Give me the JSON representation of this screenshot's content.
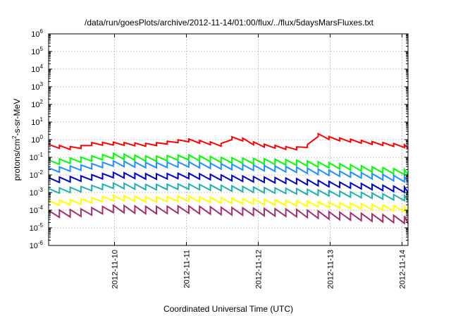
{
  "chart_data": {
    "type": "line",
    "title": "/data/run/goesPlots/archive/2012-11-14/01:00/flux/../flux/5daysMarsFluxes.txt",
    "xlabel": "Coordinated Universal Time (UTC)",
    "ylabel": {
      "base": "protons/cm",
      "sup": "2",
      "rest": "-s-sr-MeV"
    },
    "y_scale": "log",
    "ylim_exponents": [
      -6,
      6
    ],
    "y_ticks": [
      {
        "base": "10",
        "exp": "6"
      },
      {
        "base": "10",
        "exp": "5"
      },
      {
        "base": "10",
        "exp": "4"
      },
      {
        "base": "10",
        "exp": "3"
      },
      {
        "base": "10",
        "exp": "2"
      },
      {
        "base": "10",
        "exp": "1"
      },
      {
        "base": "10",
        "exp": "0"
      },
      {
        "base": "10",
        "exp": "-1"
      },
      {
        "base": "10",
        "exp": "-2"
      },
      {
        "base": "10",
        "exp": "-3"
      },
      {
        "base": "10",
        "exp": "-4"
      },
      {
        "base": "10",
        "exp": "-5"
      },
      {
        "base": "10",
        "exp": "-6"
      }
    ],
    "x_range_days": [
      "2012-11-09 02:00",
      "2012-11-14 02:00"
    ],
    "x_ticks": [
      "2012-11-10",
      "2012-11-11",
      "2012-11-12",
      "2012-11-13",
      "2012-11-14"
    ],
    "grid": true,
    "series": [
      {
        "color": "#ff0000",
        "points": [
          [
            "2012-11-09 02:00",
            0.45
          ],
          [
            "2012-11-09 12:00",
            0.3
          ],
          [
            "2012-11-09 14:00",
            0.55
          ],
          [
            "2012-11-10 00:00",
            0.6
          ],
          [
            "2012-11-10 12:00",
            0.5
          ],
          [
            "2012-11-11 00:00",
            0.95
          ],
          [
            "2012-11-11 12:00",
            0.5
          ],
          [
            "2012-11-11 16:00",
            1.5
          ],
          [
            "2012-11-12 00:00",
            0.5
          ],
          [
            "2012-11-12 12:00",
            0.3
          ],
          [
            "2012-11-12 18:00",
            0.5
          ],
          [
            "2012-11-12 19:00",
            2.0
          ],
          [
            "2012-11-13 00:00",
            1.2
          ],
          [
            "2012-11-13 12:00",
            0.7
          ],
          [
            "2012-11-14 00:00",
            0.45
          ],
          [
            "2012-11-14 02:00",
            0.4
          ]
        ]
      },
      {
        "color": "#00ff00",
        "points": [
          [
            "2012-11-09 02:00",
            0.05
          ],
          [
            "2012-11-09 12:00",
            0.07
          ],
          [
            "2012-11-10 00:00",
            0.12
          ],
          [
            "2012-11-10 12:00",
            0.08
          ],
          [
            "2012-11-11 00:00",
            0.1
          ],
          [
            "2012-11-11 12:00",
            0.07
          ],
          [
            "2012-11-12 00:00",
            0.06
          ],
          [
            "2012-11-12 12:00",
            0.05
          ],
          [
            "2012-11-13 00:00",
            0.035
          ],
          [
            "2012-11-13 12:00",
            0.022
          ],
          [
            "2012-11-14 00:00",
            0.015
          ],
          [
            "2012-11-14 02:00",
            0.014
          ]
        ]
      },
      {
        "color": "#1e90ff",
        "points": [
          [
            "2012-11-09 02:00",
            0.018
          ],
          [
            "2012-11-09 12:00",
            0.025
          ],
          [
            "2012-11-10 00:00",
            0.045
          ],
          [
            "2012-11-10 12:00",
            0.035
          ],
          [
            "2012-11-11 00:00",
            0.04
          ],
          [
            "2012-11-11 12:00",
            0.03
          ],
          [
            "2012-11-12 00:00",
            0.025
          ],
          [
            "2012-11-12 12:00",
            0.02
          ],
          [
            "2012-11-13 00:00",
            0.013
          ],
          [
            "2012-11-13 12:00",
            0.009
          ],
          [
            "2012-11-14 00:00",
            0.006
          ],
          [
            "2012-11-14 02:00",
            0.0055
          ]
        ]
      },
      {
        "color": "#0000cd",
        "points": [
          [
            "2012-11-09 02:00",
            0.005
          ],
          [
            "2012-11-09 12:00",
            0.006
          ],
          [
            "2012-11-10 00:00",
            0.01
          ],
          [
            "2012-11-10 12:00",
            0.008
          ],
          [
            "2012-11-11 00:00",
            0.009
          ],
          [
            "2012-11-11 12:00",
            0.007
          ],
          [
            "2012-11-12 00:00",
            0.0055
          ],
          [
            "2012-11-12 12:00",
            0.0045
          ],
          [
            "2012-11-13 00:00",
            0.003
          ],
          [
            "2012-11-13 12:00",
            0.0022
          ],
          [
            "2012-11-14 00:00",
            0.0015
          ],
          [
            "2012-11-14 02:00",
            0.0014
          ]
        ]
      },
      {
        "color": "#20b2aa",
        "points": [
          [
            "2012-11-09 02:00",
            0.0012
          ],
          [
            "2012-11-09 12:00",
            0.0015
          ],
          [
            "2012-11-10 00:00",
            0.0025
          ],
          [
            "2012-11-10 12:00",
            0.002
          ],
          [
            "2012-11-11 00:00",
            0.0022
          ],
          [
            "2012-11-11 12:00",
            0.0018
          ],
          [
            "2012-11-12 00:00",
            0.0014
          ],
          [
            "2012-11-12 12:00",
            0.0012
          ],
          [
            "2012-11-13 00:00",
            0.0009
          ],
          [
            "2012-11-13 12:00",
            0.0007
          ],
          [
            "2012-11-14 00:00",
            0.0005
          ],
          [
            "2012-11-14 02:00",
            0.00048
          ]
        ]
      },
      {
        "color": "#ffff00",
        "points": [
          [
            "2012-11-09 02:00",
            0.00025
          ],
          [
            "2012-11-09 12:00",
            0.0003
          ],
          [
            "2012-11-10 00:00",
            0.0005
          ],
          [
            "2012-11-10 12:00",
            0.0004
          ],
          [
            "2012-11-11 00:00",
            0.00045
          ],
          [
            "2012-11-11 12:00",
            0.00035
          ],
          [
            "2012-11-12 00:00",
            0.0003
          ],
          [
            "2012-11-12 12:00",
            0.00025
          ],
          [
            "2012-11-13 00:00",
            0.0002
          ],
          [
            "2012-11-13 12:00",
            0.00016
          ],
          [
            "2012-11-14 00:00",
            0.00012
          ],
          [
            "2012-11-14 02:00",
            0.00011
          ]
        ]
      },
      {
        "color": "#a0306e",
        "points": [
          [
            "2012-11-09 02:00",
            6e-05
          ],
          [
            "2012-11-09 12:00",
            7e-05
          ],
          [
            "2012-11-10 00:00",
            0.00012
          ],
          [
            "2012-11-10 12:00",
            0.0001
          ],
          [
            "2012-11-11 00:00",
            0.00011
          ],
          [
            "2012-11-11 12:00",
            9e-05
          ],
          [
            "2012-11-12 00:00",
            8e-05
          ],
          [
            "2012-11-12 12:00",
            7e-05
          ],
          [
            "2012-11-13 00:00",
            5e-05
          ],
          [
            "2012-11-13 12:00",
            4e-05
          ],
          [
            "2012-11-14 00:00",
            3e-05
          ],
          [
            "2012-11-14 02:00",
            2.8e-05
          ]
        ]
      }
    ]
  }
}
